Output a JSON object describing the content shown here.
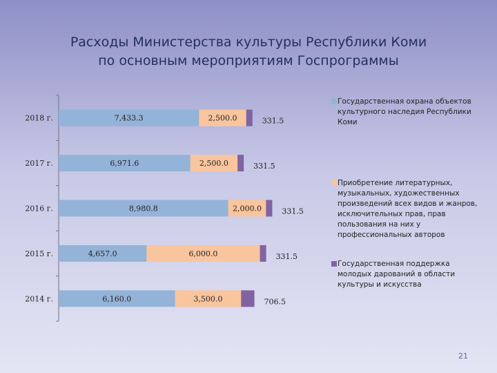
{
  "title": {
    "line1": "Расходы Министерства культуры Республики Коми",
    "line2": "по основным мероприятиям Госпрограммы"
  },
  "page_number": "21",
  "chart_data": {
    "type": "bar",
    "orientation": "horizontal",
    "stacked": true,
    "categories": [
      "2014 г.",
      "2015 г.",
      "2016 г.",
      "2017 г.",
      "2018 г."
    ],
    "series": [
      {
        "name": "Государственная охрана объектов культурного наследия Республики Коми",
        "color": "#94b3d9",
        "values": [
          6160.0,
          4657.0,
          8980.8,
          6971.6,
          7433.3
        ],
        "labels": [
          "6,160.0",
          "4,657.0",
          "8,980.8",
          "6,971.6",
          "7,433.3"
        ]
      },
      {
        "name": "Приобретение литературных, музыкальных, художественных произведений всех видов и жанров, исключительных прав, прав пользования на них у профессиональных авторов",
        "color": "#f9c59e",
        "values": [
          3500.0,
          6000.0,
          2000.0,
          2500.0,
          2500.0
        ],
        "labels": [
          "3,500.0",
          "6,000.0",
          "2,000.0",
          "2,500.0",
          "2,500.0"
        ]
      },
      {
        "name": "Государственная поддержка молодых дарований в области культуры и искусства",
        "color": "#8064a2",
        "values": [
          706.5,
          331.5,
          331.5,
          331.5,
          331.5
        ],
        "labels": [
          "706.5",
          "331.5",
          "331.5",
          "331.5",
          "331.5"
        ]
      }
    ],
    "xlim": [
      0,
      17000
    ],
    "grid": false,
    "legend": "right"
  }
}
